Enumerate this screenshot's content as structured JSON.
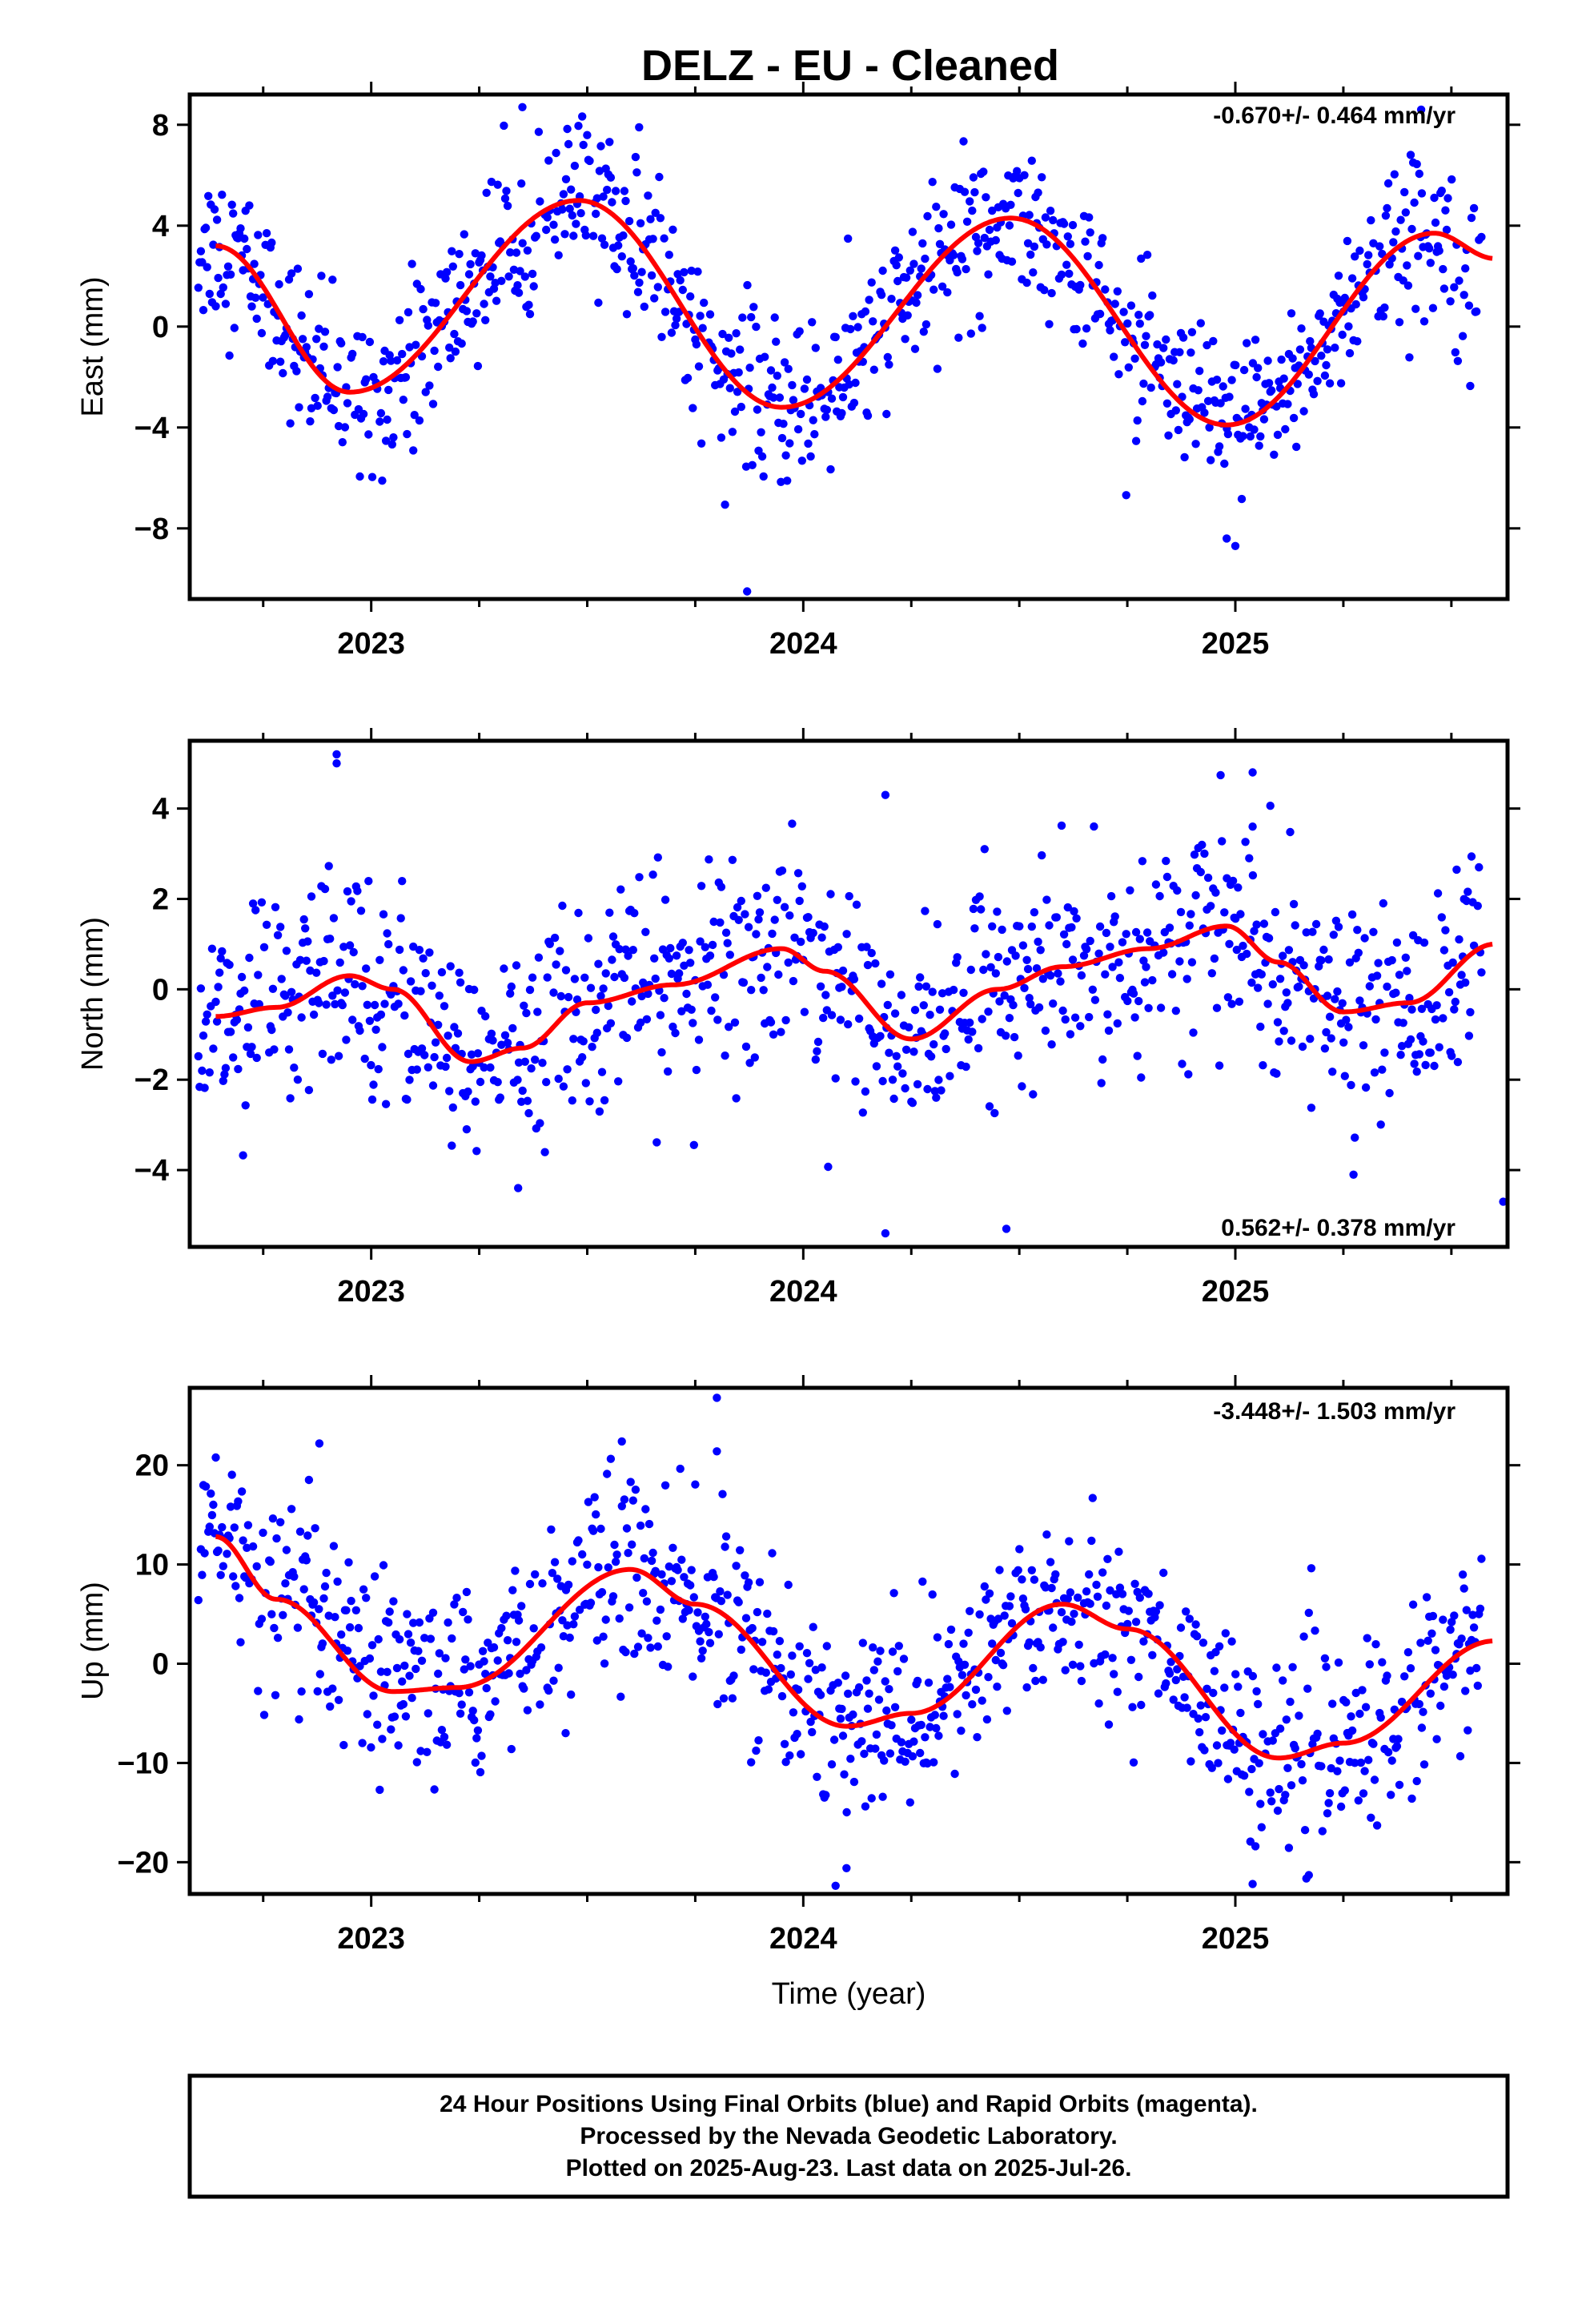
{
  "title": "DELZ  - EU - Cleaned",
  "colors": {
    "points": "#0000ff",
    "fit": "#ff0000",
    "frame": "#000000"
  },
  "footer": {
    "line1": "24 Hour Positions Using Final Orbits (blue) and Rapid Orbits (magenta).",
    "line2": "Processed by the Nevada Geodetic Laboratory.",
    "line3": "Plotted on 2025-Aug-23. Last data on 2025-Jul-26."
  },
  "chart_data": [
    {
      "type": "scatter",
      "component": "east",
      "ylabel": "East (mm)",
      "xlabel": "",
      "rate_text": "-0.670+/- 0.464 mm/yr",
      "xlim": [
        2022.58,
        2025.63
      ],
      "ylim": [
        -10.8,
        9.2
      ],
      "xticks": [
        2023,
        2024,
        2025
      ],
      "yticks": [
        -8,
        -4,
        0,
        4,
        8
      ],
      "ytick_labels": [
        "−8",
        "−4",
        "0",
        "4",
        "8"
      ],
      "grid": false,
      "fit": {
        "trend": -0.67,
        "cycles": [
          [
            2022.64,
            3.2
          ],
          [
            2022.95,
            -2.6
          ],
          [
            2023.48,
            5.0
          ],
          [
            2023.95,
            -3.2
          ],
          [
            2024.48,
            4.3
          ],
          [
            2024.98,
            -3.9
          ],
          [
            2025.46,
            3.7
          ],
          [
            2025.6,
            2.7
          ]
        ]
      },
      "scatter_sigma": 1.6,
      "outliers": [
        [
          2023.35,
          8.7
        ],
        [
          2023.62,
          7.9
        ],
        [
          2023.87,
          -10.5
        ],
        [
          2025.43,
          8.6
        ],
        [
          2025.0,
          -8.7
        ],
        [
          2024.98,
          -8.4
        ]
      ]
    },
    {
      "type": "scatter",
      "component": "north",
      "ylabel": "North (mm)",
      "xlabel": "",
      "rate_text": "0.562+/- 0.378 mm/yr",
      "xlim": [
        2022.58,
        2025.63
      ],
      "ylim": [
        -5.7,
        5.5
      ],
      "xticks": [
        2023,
        2024,
        2025
      ],
      "yticks": [
        -4,
        -2,
        0,
        2,
        4
      ],
      "ytick_labels": [
        "−4",
        "−2",
        "0",
        "2",
        "4"
      ],
      "grid": false,
      "fit": {
        "trend": 0.562,
        "cycles": [
          [
            2022.64,
            -0.6
          ],
          [
            2022.78,
            -0.4
          ],
          [
            2022.95,
            0.3
          ],
          [
            2023.05,
            0.0
          ],
          [
            2023.23,
            -1.6
          ],
          [
            2023.35,
            -1.3
          ],
          [
            2023.5,
            -0.3
          ],
          [
            2023.7,
            0.1
          ],
          [
            2023.95,
            0.9
          ],
          [
            2024.05,
            0.4
          ],
          [
            2024.25,
            -1.1
          ],
          [
            2024.45,
            0.0
          ],
          [
            2024.6,
            0.5
          ],
          [
            2024.8,
            0.9
          ],
          [
            2024.98,
            1.4
          ],
          [
            2025.1,
            0.6
          ],
          [
            2025.25,
            -0.5
          ],
          [
            2025.4,
            -0.3
          ],
          [
            2025.6,
            1.0
          ]
        ]
      },
      "scatter_sigma": 1.15,
      "outliers": [
        [
          2022.92,
          5.2
        ],
        [
          2022.92,
          5.0
        ],
        [
          2024.19,
          4.3
        ],
        [
          2025.04,
          4.8
        ],
        [
          2025.04,
          3.6
        ],
        [
          2024.47,
          -5.3
        ],
        [
          2024.19,
          -5.4
        ],
        [
          2025.62,
          -4.7
        ],
        [
          2023.34,
          -4.4
        ]
      ]
    },
    {
      "type": "scatter",
      "component": "up",
      "ylabel": "Up (mm)",
      "xlabel": "Time (year)",
      "rate_text": "-3.448+/- 1.503 mm/yr",
      "xlim": [
        2022.58,
        2025.63
      ],
      "ylim": [
        -23.2,
        27.8
      ],
      "xticks": [
        2023,
        2024,
        2025
      ],
      "yticks": [
        -20,
        -10,
        0,
        10,
        20
      ],
      "ytick_labels": [
        "−20",
        "−10",
        "0",
        "10",
        "20"
      ],
      "grid": false,
      "fit": {
        "trend": -3.448,
        "cycles": [
          [
            2022.64,
            12.8
          ],
          [
            2022.78,
            6.5
          ],
          [
            2023.05,
            -2.8
          ],
          [
            2023.2,
            -2.4
          ],
          [
            2023.6,
            9.5
          ],
          [
            2023.75,
            6.0
          ],
          [
            2024.1,
            -6.3
          ],
          [
            2024.25,
            -5.0
          ],
          [
            2024.6,
            6.0
          ],
          [
            2024.75,
            3.5
          ],
          [
            2025.1,
            -9.5
          ],
          [
            2025.25,
            -8.0
          ],
          [
            2025.6,
            2.3
          ]
        ]
      },
      "scatter_sigma": 4.8,
      "outliers": [
        [
          2023.8,
          26.8
        ],
        [
          2023.8,
          21.4
        ],
        [
          2022.88,
          22.2
        ],
        [
          2023.58,
          22.4
        ],
        [
          2024.1,
          -20.6
        ],
        [
          2025.04,
          -22.2
        ],
        [
          2025.17,
          -21.3
        ],
        [
          2023.45,
          -7.0
        ]
      ]
    }
  ]
}
